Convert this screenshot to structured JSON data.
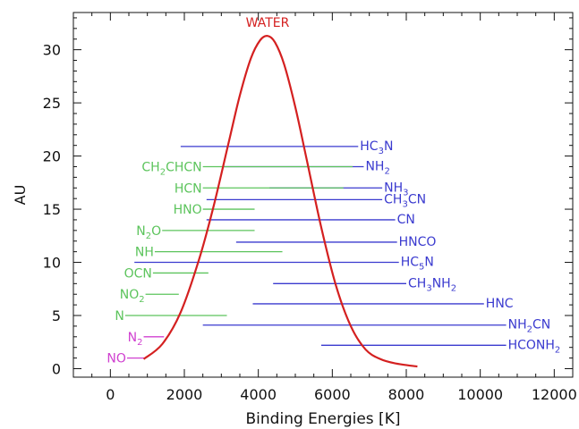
{
  "chart_data": {
    "type": "line",
    "xlabel": "Binding Energies [K]",
    "ylabel": "AU",
    "xlim": [
      -1000,
      12500
    ],
    "ylim": [
      -0.8,
      33.5
    ],
    "xticks": [
      0,
      2000,
      4000,
      6000,
      8000,
      10000,
      12000
    ],
    "yticks": [
      0,
      5,
      10,
      15,
      20,
      25,
      30
    ],
    "xtick_labels": [
      "0",
      "2000",
      "4000",
      "6000",
      "8000",
      "10000",
      "12000"
    ],
    "ytick_labels": [
      "0",
      "5",
      "10",
      "15",
      "20",
      "25",
      "30"
    ],
    "grid": false,
    "colors": {
      "water": "#d42020",
      "blue": "#3a3acf",
      "green": "#5cc45c",
      "magenta": "#d040d0",
      "axis": "#111111"
    },
    "series": [
      {
        "name": "WATER",
        "x": [
          900,
          1400,
          1900,
          2400,
          2800,
          3200,
          3500,
          3800,
          4050,
          4250,
          4450,
          4700,
          5000,
          5300,
          5700,
          6100,
          6500,
          6900,
          7300,
          7700,
          8300
        ],
        "y": [
          0.9,
          2.3,
          5.3,
          10.3,
          15.4,
          21.3,
          25.7,
          29.2,
          30.9,
          31.3,
          30.7,
          28.6,
          24.6,
          19.8,
          13.3,
          7.8,
          4.0,
          1.8,
          0.9,
          0.5,
          0.2
        ]
      }
    ],
    "molecules": [
      {
        "name": "HC",
        "sub": "3",
        "suffix": "N",
        "color": "blue",
        "start": 1900,
        "end": 6700,
        "y": 20.9
      },
      {
        "name": "NH",
        "sub": "2",
        "suffix": "",
        "color": "blue",
        "start": 3050,
        "end": 6850,
        "y": 19.0
      },
      {
        "name": "NH",
        "sub": "3",
        "suffix": "",
        "color": "blue",
        "start": 4300,
        "end": 7350,
        "y": 17.0
      },
      {
        "name": "CH",
        "sub": "3",
        "suffix": "CN",
        "color": "blue",
        "start": 2600,
        "end": 7350,
        "y": 15.9
      },
      {
        "name": "CN",
        "sub": "",
        "suffix": "",
        "color": "blue",
        "start": 2600,
        "end": 7700,
        "y": 14.0
      },
      {
        "name": "HNCO",
        "sub": "",
        "suffix": "",
        "color": "blue",
        "start": 3400,
        "end": 7750,
        "y": 11.9
      },
      {
        "name": "HC",
        "sub": "5",
        "suffix": "N",
        "color": "blue",
        "start": 650,
        "end": 7800,
        "y": 10.0
      },
      {
        "name": "CH",
        "sub": "3",
        "suffix": "NH2",
        "color": "blue",
        "start": 4400,
        "end": 8000,
        "y": 8.0
      },
      {
        "name": "HNC",
        "sub": "",
        "suffix": "",
        "color": "blue",
        "start": 3850,
        "end": 10100,
        "y": 6.1
      },
      {
        "name": "NH",
        "sub": "2",
        "suffix": "CN",
        "color": "blue",
        "start": 2500,
        "end": 10700,
        "y": 4.1
      },
      {
        "name": "HCONH",
        "sub": "2",
        "suffix": "",
        "color": "blue",
        "start": 5700,
        "end": 10700,
        "y": 2.2
      },
      {
        "name": "CH",
        "sub": "2",
        "suffix": "CHCN",
        "color": "green",
        "start": 2500,
        "end": 6550,
        "y": 19.0
      },
      {
        "name": "HCN",
        "sub": "",
        "suffix": "",
        "color": "green",
        "start": 2500,
        "end": 6300,
        "y": 17.0
      },
      {
        "name": "HNO",
        "sub": "",
        "suffix": "",
        "color": "green",
        "start": 2500,
        "end": 3900,
        "y": 15.0
      },
      {
        "name": "N",
        "sub": "2",
        "suffix": "O",
        "color": "green",
        "start": 1400,
        "end": 3900,
        "y": 13.0
      },
      {
        "name": "NH",
        "sub": "",
        "suffix": "",
        "color": "green",
        "start": 1200,
        "end": 4650,
        "y": 11.0
      },
      {
        "name": "OCN",
        "sub": "",
        "suffix": "",
        "color": "green",
        "start": 1150,
        "end": 2650,
        "y": 9.0
      },
      {
        "name": "NO",
        "sub": "2",
        "suffix": "",
        "color": "green",
        "start": 950,
        "end": 1850,
        "y": 7.0
      },
      {
        "name": "N",
        "sub": "",
        "suffix": "",
        "color": "green",
        "start": 400,
        "end": 3150,
        "y": 5.0
      },
      {
        "name": "N",
        "sub": "2",
        "suffix": "",
        "color": "magenta",
        "start": 900,
        "end": 1450,
        "y": 3.0
      },
      {
        "name": "NO",
        "sub": "",
        "suffix": "",
        "color": "magenta",
        "start": 450,
        "end": 950,
        "y": 1.0
      }
    ]
  }
}
